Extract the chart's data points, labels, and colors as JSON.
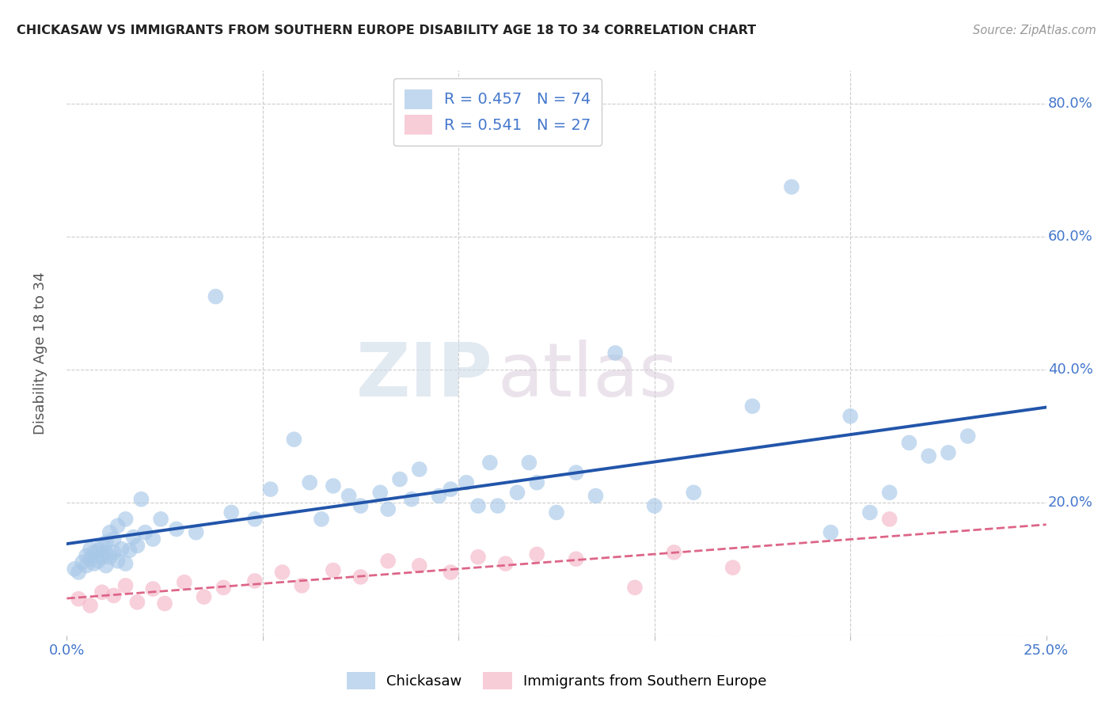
{
  "title": "CHICKASAW VS IMMIGRANTS FROM SOUTHERN EUROPE DISABILITY AGE 18 TO 34 CORRELATION CHART",
  "source": "Source: ZipAtlas.com",
  "ylabel": "Disability Age 18 to 34",
  "xlim": [
    0.0,
    0.25
  ],
  "ylim": [
    0.0,
    0.85
  ],
  "legend_r1": "R = 0.457",
  "legend_n1": "N = 74",
  "legend_r2": "R = 0.541",
  "legend_n2": "N = 27",
  "blue_color": "#a8c8e8",
  "pink_color": "#f4b8c8",
  "blue_line_color": "#2255aa",
  "pink_line_color": "#dd6688",
  "watermark_zip": "ZIP",
  "watermark_atlas": "atlas",
  "blue_scatter_x": [
    0.002,
    0.003,
    0.004,
    0.005,
    0.005,
    0.006,
    0.006,
    0.007,
    0.007,
    0.008,
    0.008,
    0.009,
    0.009,
    0.01,
    0.01,
    0.01,
    0.011,
    0.011,
    0.012,
    0.012,
    0.013,
    0.013,
    0.014,
    0.015,
    0.015,
    0.016,
    0.017,
    0.018,
    0.019,
    0.02,
    0.022,
    0.024,
    0.028,
    0.033,
    0.038,
    0.042,
    0.048,
    0.052,
    0.058,
    0.062,
    0.065,
    0.068,
    0.072,
    0.075,
    0.08,
    0.082,
    0.085,
    0.088,
    0.09,
    0.095,
    0.098,
    0.102,
    0.105,
    0.108,
    0.11,
    0.115,
    0.118,
    0.12,
    0.125,
    0.13,
    0.135,
    0.14,
    0.15,
    0.16,
    0.175,
    0.185,
    0.195,
    0.2,
    0.205,
    0.21,
    0.215,
    0.22,
    0.225,
    0.23
  ],
  "blue_scatter_y": [
    0.1,
    0.095,
    0.11,
    0.12,
    0.105,
    0.115,
    0.13,
    0.108,
    0.125,
    0.112,
    0.128,
    0.118,
    0.135,
    0.105,
    0.125,
    0.14,
    0.118,
    0.155,
    0.125,
    0.145,
    0.112,
    0.165,
    0.13,
    0.108,
    0.175,
    0.128,
    0.148,
    0.135,
    0.205,
    0.155,
    0.145,
    0.175,
    0.16,
    0.155,
    0.51,
    0.185,
    0.175,
    0.22,
    0.295,
    0.23,
    0.175,
    0.225,
    0.21,
    0.195,
    0.215,
    0.19,
    0.235,
    0.205,
    0.25,
    0.21,
    0.22,
    0.23,
    0.195,
    0.26,
    0.195,
    0.215,
    0.26,
    0.23,
    0.185,
    0.245,
    0.21,
    0.425,
    0.195,
    0.215,
    0.345,
    0.675,
    0.155,
    0.33,
    0.185,
    0.215,
    0.29,
    0.27,
    0.275,
    0.3
  ],
  "pink_scatter_x": [
    0.003,
    0.006,
    0.009,
    0.012,
    0.015,
    0.018,
    0.022,
    0.025,
    0.03,
    0.035,
    0.04,
    0.048,
    0.055,
    0.06,
    0.068,
    0.075,
    0.082,
    0.09,
    0.098,
    0.105,
    0.112,
    0.12,
    0.13,
    0.145,
    0.155,
    0.17,
    0.21
  ],
  "pink_scatter_y": [
    0.055,
    0.045,
    0.065,
    0.06,
    0.075,
    0.05,
    0.07,
    0.048,
    0.08,
    0.058,
    0.072,
    0.082,
    0.095,
    0.075,
    0.098,
    0.088,
    0.112,
    0.105,
    0.095,
    0.118,
    0.108,
    0.122,
    0.115,
    0.072,
    0.125,
    0.102,
    0.175
  ],
  "background_color": "#ffffff",
  "grid_color": "#cccccc",
  "tick_color": "#4477cc",
  "title_color": "#222222",
  "source_color": "#999999"
}
